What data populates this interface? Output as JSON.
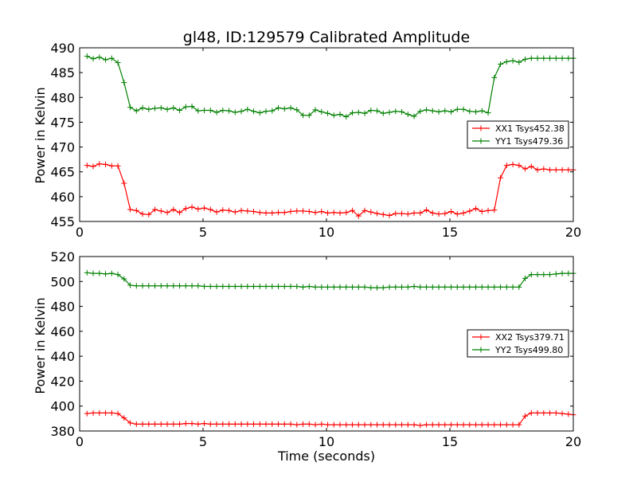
{
  "chart_data": [
    {
      "type": "line",
      "title": "gl48, ID:129579 Calibrated Amplitude",
      "xlabel": "",
      "ylabel": "Power in Kelvin",
      "xlim": [
        0,
        20
      ],
      "ylim": [
        455,
        490
      ],
      "xticks": [
        "0",
        "5",
        "10",
        "15",
        "20"
      ],
      "yticks": [
        "455",
        "460",
        "465",
        "470",
        "475",
        "480",
        "485",
        "490"
      ],
      "legend_position": "center-right",
      "grid": false,
      "x": [
        0.3,
        0.55,
        0.8,
        1.05,
        1.3,
        1.55,
        1.8,
        2.05,
        2.3,
        2.55,
        2.8,
        3.05,
        3.3,
        3.55,
        3.8,
        4.05,
        4.3,
        4.55,
        4.8,
        5.05,
        5.3,
        5.55,
        5.8,
        6.05,
        6.3,
        6.55,
        6.8,
        7.05,
        7.3,
        7.55,
        7.8,
        8.05,
        8.3,
        8.55,
        8.8,
        9.05,
        9.3,
        9.55,
        9.8,
        10.05,
        10.3,
        10.55,
        10.8,
        11.05,
        11.3,
        11.55,
        11.8,
        12.05,
        12.3,
        12.55,
        12.8,
        13.05,
        13.3,
        13.55,
        13.8,
        14.05,
        14.3,
        14.55,
        14.8,
        15.05,
        15.3,
        15.55,
        15.8,
        16.05,
        16.3,
        16.55,
        16.8,
        17.05,
        17.3,
        17.55,
        17.8,
        18.05,
        18.3,
        18.55,
        18.8,
        19.05,
        19.3,
        19.55,
        19.8,
        20.0
      ],
      "series": [
        {
          "name": "XX1 Tsys452.38",
          "color": "#ff0000",
          "values": [
            466.3,
            466.1,
            466.6,
            466.5,
            466.2,
            466.2,
            462.7,
            457.4,
            457.2,
            456.5,
            456.4,
            457.4,
            457.1,
            456.8,
            457.4,
            456.8,
            457.6,
            457.9,
            457.5,
            457.7,
            457.4,
            456.9,
            457.3,
            457.2,
            456.9,
            457.2,
            457.1,
            457.0,
            456.8,
            456.7,
            456.7,
            456.8,
            456.8,
            457.0,
            457.1,
            457.1,
            457.0,
            456.8,
            457.0,
            456.7,
            456.8,
            456.7,
            456.8,
            457.2,
            456.1,
            457.2,
            456.9,
            456.6,
            456.4,
            456.2,
            456.6,
            456.6,
            456.5,
            456.7,
            456.7,
            457.3,
            456.7,
            456.5,
            456.6,
            457.0,
            456.5,
            456.7,
            457.1,
            457.6,
            457.0,
            457.2,
            457.3,
            463.8,
            466.3,
            466.5,
            466.3,
            465.6,
            466.1,
            465.4,
            465.6,
            465.4,
            465.4,
            465.4,
            465.4,
            465.4
          ]
        },
        {
          "name": "YY1 Tsys479.36",
          "color": "#008000",
          "values": [
            488.3,
            487.8,
            488.1,
            487.6,
            487.9,
            487.0,
            483.0,
            478.0,
            477.3,
            477.9,
            477.6,
            477.8,
            477.9,
            477.6,
            477.9,
            477.4,
            478.1,
            478.2,
            477.3,
            477.4,
            477.4,
            477.0,
            477.4,
            477.3,
            477.0,
            477.2,
            477.6,
            477.2,
            476.9,
            477.2,
            477.3,
            477.9,
            477.7,
            477.9,
            477.5,
            476.4,
            476.4,
            477.5,
            477.1,
            476.8,
            476.4,
            476.6,
            476.1,
            476.9,
            477.0,
            476.8,
            477.4,
            477.3,
            476.8,
            477.0,
            477.2,
            477.1,
            476.6,
            476.2,
            477.2,
            477.5,
            477.3,
            477.1,
            477.3,
            477.1,
            477.6,
            477.6,
            477.2,
            477.1,
            477.3,
            476.9,
            484.0,
            486.7,
            487.2,
            487.4,
            487.1,
            487.7,
            487.9,
            487.9,
            487.9,
            487.9,
            487.9,
            487.9,
            487.9,
            487.9
          ]
        }
      ]
    },
    {
      "type": "line",
      "title": "",
      "xlabel": "Time (seconds)",
      "ylabel": "Power in Kelvin",
      "xlim": [
        0,
        20
      ],
      "ylim": [
        380,
        520
      ],
      "xticks": [
        "0",
        "5",
        "10",
        "15",
        "20"
      ],
      "yticks": [
        "380",
        "400",
        "420",
        "440",
        "460",
        "480",
        "500",
        "520"
      ],
      "legend_position": "center-right",
      "grid": false,
      "x": [
        0.3,
        0.55,
        0.8,
        1.05,
        1.3,
        1.55,
        1.8,
        2.05,
        2.3,
        2.55,
        2.8,
        3.05,
        3.3,
        3.55,
        3.8,
        4.05,
        4.3,
        4.55,
        4.8,
        5.05,
        5.3,
        5.55,
        5.8,
        6.05,
        6.3,
        6.55,
        6.8,
        7.05,
        7.3,
        7.55,
        7.8,
        8.05,
        8.3,
        8.55,
        8.8,
        9.05,
        9.3,
        9.55,
        9.8,
        10.05,
        10.3,
        10.55,
        10.8,
        11.05,
        11.3,
        11.55,
        11.8,
        12.05,
        12.3,
        12.55,
        12.8,
        13.05,
        13.3,
        13.55,
        13.8,
        14.05,
        14.3,
        14.55,
        14.8,
        15.05,
        15.3,
        15.55,
        15.8,
        16.05,
        16.3,
        16.55,
        16.8,
        17.05,
        17.3,
        17.55,
        17.8,
        18.05,
        18.3,
        18.55,
        18.8,
        19.05,
        19.3,
        19.55,
        19.8,
        20.0
      ],
      "series": [
        {
          "name": "XX2 Tsys379.71",
          "color": "#ff0000",
          "values": [
            394,
            394.5,
            394.5,
            394.5,
            394.5,
            394,
            390.5,
            386.5,
            385.5,
            385.5,
            385.5,
            385.5,
            385.5,
            385.5,
            385.5,
            385.5,
            386,
            386,
            385.5,
            386,
            385.5,
            385.5,
            385.5,
            385.5,
            385.5,
            385.5,
            385.5,
            385.5,
            385.5,
            385.5,
            385.5,
            385.5,
            385.5,
            385.5,
            385,
            385.5,
            385.5,
            385,
            385.5,
            385,
            385,
            385,
            385,
            385,
            385,
            385,
            385,
            385,
            385,
            385,
            385,
            385,
            385,
            385,
            384.5,
            385,
            385,
            385,
            385,
            385,
            385,
            385,
            385,
            385,
            385,
            385,
            385,
            385,
            385,
            385,
            385,
            392,
            394.5,
            394.5,
            394.5,
            394.5,
            394.5,
            394,
            393.5,
            393
          ]
        },
        {
          "name": "YY2 Tsys499.80",
          "color": "#008000",
          "values": [
            507,
            506.5,
            506.5,
            506,
            506.5,
            505.5,
            502,
            497,
            496.5,
            496.5,
            496.5,
            496.5,
            496.5,
            496.5,
            496.5,
            496.5,
            496.5,
            496.5,
            496.5,
            496,
            496,
            496,
            496,
            496,
            496,
            496,
            496,
            496,
            496,
            496,
            496,
            496,
            496,
            496,
            496,
            495.5,
            496,
            495.5,
            495.5,
            495.5,
            495.5,
            495.5,
            495.5,
            495.5,
            495.5,
            495.5,
            495,
            495,
            495,
            495.5,
            495.5,
            495.5,
            495.5,
            496,
            495.5,
            495.5,
            495.5,
            495.5,
            495.5,
            495.5,
            495.5,
            495.5,
            495.5,
            495.5,
            495.5,
            495.5,
            495.5,
            495.5,
            495.5,
            495.5,
            495.5,
            502.5,
            505.5,
            505.5,
            505.5,
            505.5,
            506,
            506.5,
            506.5,
            506.5
          ]
        }
      ]
    }
  ]
}
